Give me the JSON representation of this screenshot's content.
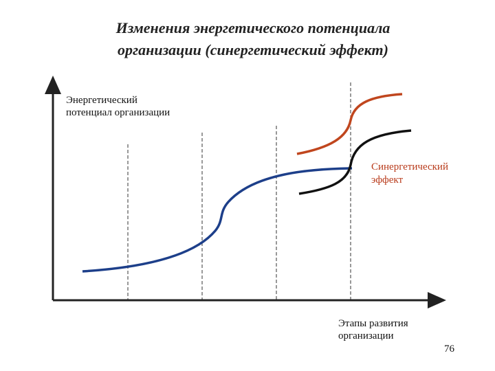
{
  "title": {
    "lines": [
      "Изменения энергетического потенциала",
      "организации (синергетический эффект)"
    ]
  },
  "y_axis_label": {
    "lines": [
      "Энергетический",
      "потенциал организации"
    ]
  },
  "annotation": {
    "lines": [
      "Синергетический",
      "эффект"
    ]
  },
  "x_axis_label": {
    "lines": [
      "Этапы развития",
      "организации"
    ]
  },
  "page_number": "76"
}
